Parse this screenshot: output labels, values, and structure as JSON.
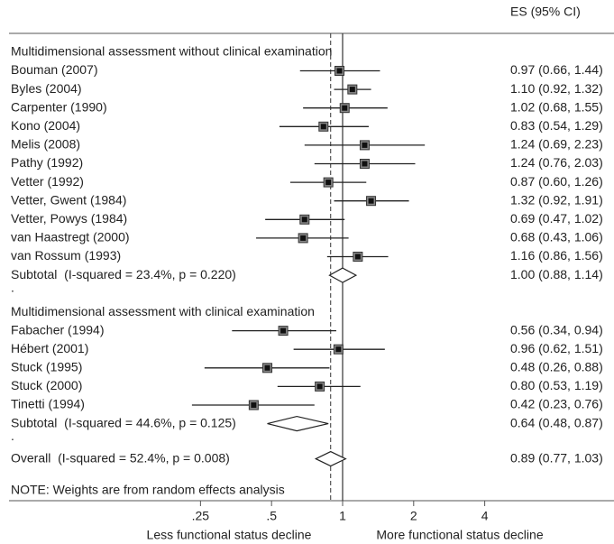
{
  "chart_data": {
    "type": "forest",
    "column_header": "ES (95% CI)",
    "log_x": true,
    "xlim": [
      0.2,
      4.5
    ],
    "xticks": [
      {
        "value": 0.25,
        "label": ".25"
      },
      {
        "value": 0.5,
        "label": ".5"
      },
      1,
      2,
      4
    ],
    "xlabel_left": "Less functional status decline",
    "xlabel_right": "More functional status decline",
    "null_line": 1,
    "groups": [
      {
        "title": "Multidimensional assessment without clinical examination",
        "studies": [
          {
            "name": "Bouman (2007)",
            "es": 0.97,
            "lo": 0.66,
            "hi": 1.44,
            "label": "0.97 (0.66, 1.44)"
          },
          {
            "name": "Byles (2004)",
            "es": 1.1,
            "lo": 0.92,
            "hi": 1.32,
            "label": "1.10 (0.92, 1.32)"
          },
          {
            "name": "Carpenter (1990)",
            "es": 1.02,
            "lo": 0.68,
            "hi": 1.55,
            "label": "1.02 (0.68, 1.55)"
          },
          {
            "name": "Kono (2004)",
            "es": 0.83,
            "lo": 0.54,
            "hi": 1.29,
            "label": "0.83 (0.54, 1.29)"
          },
          {
            "name": "Melis (2008)",
            "es": 1.24,
            "lo": 0.69,
            "hi": 2.23,
            "label": "1.24 (0.69, 2.23)"
          },
          {
            "name": "Pathy (1992)",
            "es": 1.24,
            "lo": 0.76,
            "hi": 2.03,
            "label": "1.24 (0.76, 2.03)"
          },
          {
            "name": "Vetter (1992)",
            "es": 0.87,
            "lo": 0.6,
            "hi": 1.26,
            "label": "0.87 (0.60, 1.26)"
          },
          {
            "name": "Vetter, Gwent (1984)",
            "es": 1.32,
            "lo": 0.92,
            "hi": 1.91,
            "label": "1.32 (0.92, 1.91)"
          },
          {
            "name": "Vetter, Powys (1984)",
            "es": 0.69,
            "lo": 0.47,
            "hi": 1.02,
            "label": "0.69 (0.47, 1.02)"
          },
          {
            "name": "van Haastregt (2000)",
            "es": 0.68,
            "lo": 0.43,
            "hi": 1.06,
            "label": "0.68 (0.43, 1.06)"
          },
          {
            "name": "van Rossum (1993)",
            "es": 1.16,
            "lo": 0.86,
            "hi": 1.56,
            "label": "1.16 (0.86, 1.56)"
          }
        ],
        "subtotal": {
          "name": "Subtotal  (I-squared = 23.4%, p = 0.220)",
          "es": 1.0,
          "lo": 0.88,
          "hi": 1.14,
          "label": "1.00 (0.88, 1.14)"
        },
        "separator": "."
      },
      {
        "title": "Multidimensional assessment with clinical examination",
        "studies": [
          {
            "name": "Fabacher (1994)",
            "es": 0.56,
            "lo": 0.34,
            "hi": 0.94,
            "label": "0.56 (0.34, 0.94)"
          },
          {
            "name": "Hébert (2001)",
            "es": 0.96,
            "lo": 0.62,
            "hi": 1.51,
            "label": "0.96 (0.62, 1.51)"
          },
          {
            "name": "Stuck (1995)",
            "es": 0.48,
            "lo": 0.26,
            "hi": 0.88,
            "label": "0.48 (0.26, 0.88)"
          },
          {
            "name": "Stuck (2000)",
            "es": 0.8,
            "lo": 0.53,
            "hi": 1.19,
            "label": "0.80 (0.53, 1.19)"
          },
          {
            "name": "Tinetti (1994)",
            "es": 0.42,
            "lo": 0.23,
            "hi": 0.76,
            "label": "0.42 (0.23, 0.76)"
          }
        ],
        "subtotal": {
          "name": "Subtotal  (I-squared = 44.6%, p = 0.125)",
          "es": 0.64,
          "lo": 0.48,
          "hi": 0.87,
          "label": "0.64 (0.48, 0.87)"
        },
        "separator": "."
      }
    ],
    "overall": {
      "name": "Overall  (I-squared = 52.4%, p = 0.008)",
      "es": 0.89,
      "lo": 0.77,
      "hi": 1.03,
      "label": "0.89 (0.77, 1.03)"
    },
    "note": "NOTE: Weights are from random effects analysis"
  }
}
